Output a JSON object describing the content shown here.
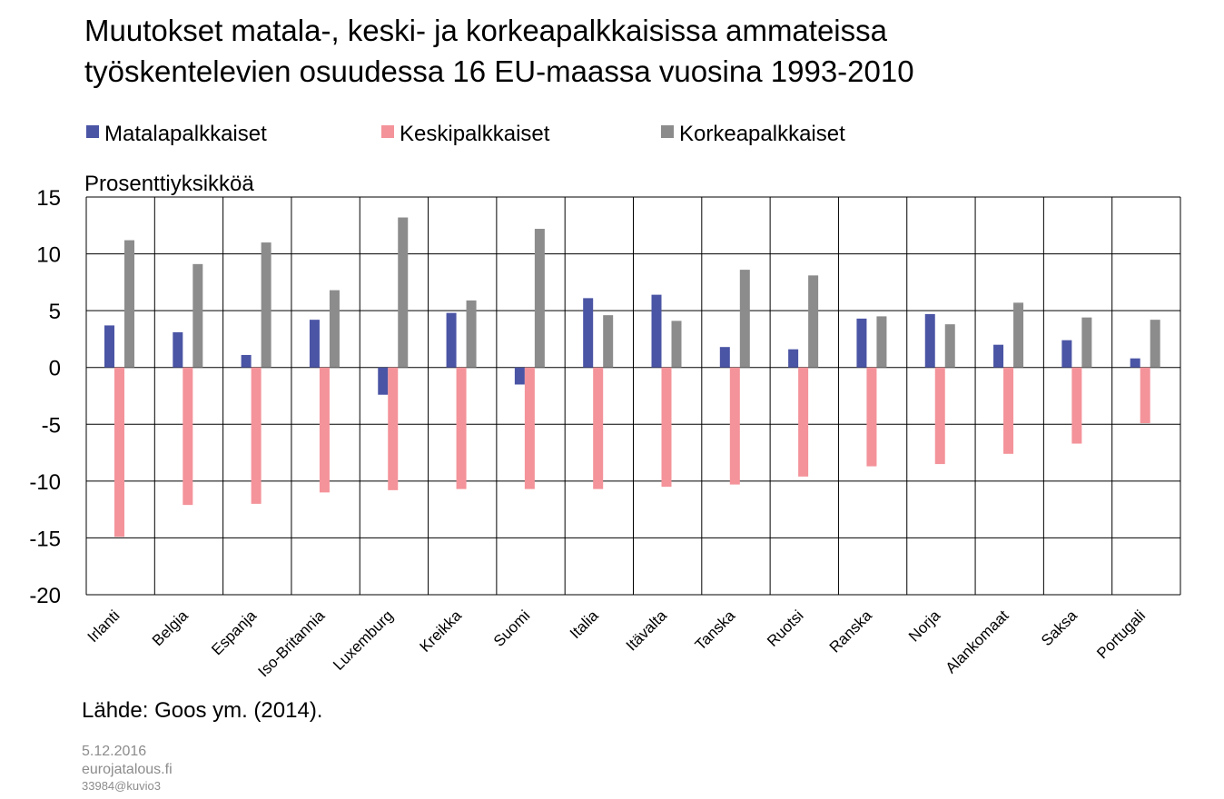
{
  "chart_data": {
    "type": "bar",
    "title_lines": [
      "Muutokset matala-, keski- ja korkeapalkkaisissa ammateissa",
      "työskentelevien osuudessa 16 EU-maassa vuosina 1993-2010"
    ],
    "y_label": "Prosenttiyksikköä",
    "categories": [
      "Irlanti",
      "Belgia",
      "Espanja",
      "Iso-Britannia",
      "Luxemburg",
      "Kreikka",
      "Suomi",
      "Italia",
      "Itävalta",
      "Tanska",
      "Ruotsi",
      "Ranska",
      "Norja",
      "Alankomaat",
      "Saksa",
      "Portugali"
    ],
    "series": [
      {
        "name": "Matalapalkkaiset",
        "color": "#4b55a5",
        "values": [
          3.7,
          3.1,
          1.1,
          4.2,
          -2.4,
          4.8,
          -1.5,
          6.1,
          6.4,
          1.8,
          1.6,
          4.3,
          4.7,
          2.0,
          2.4,
          0.8
        ]
      },
      {
        "name": "Keskipalkkaiset",
        "color": "#f4939a",
        "values": [
          -14.9,
          -12.1,
          -12.0,
          -11.0,
          -10.8,
          -10.7,
          -10.7,
          -10.7,
          -10.5,
          -10.3,
          -9.6,
          -8.7,
          -8.5,
          -7.6,
          -6.7,
          -4.9
        ]
      },
      {
        "name": "Korkeapalkkaiset",
        "color": "#8c8c8c",
        "values": [
          11.2,
          9.1,
          11.0,
          6.8,
          13.2,
          5.9,
          12.2,
          4.6,
          4.1,
          8.6,
          8.1,
          4.5,
          3.8,
          5.7,
          4.4,
          4.2
        ]
      }
    ],
    "ylim": [
      -20,
      15
    ],
    "yticks": [
      15,
      10,
      5,
      0,
      -5,
      -10,
      -15,
      -20
    ],
    "grid": true,
    "legend": "top",
    "source": "Lähde: Goos ym. (2014).",
    "footer": [
      "5.12.2016",
      "eurojatalous.fi",
      "33984@kuvio3"
    ]
  }
}
